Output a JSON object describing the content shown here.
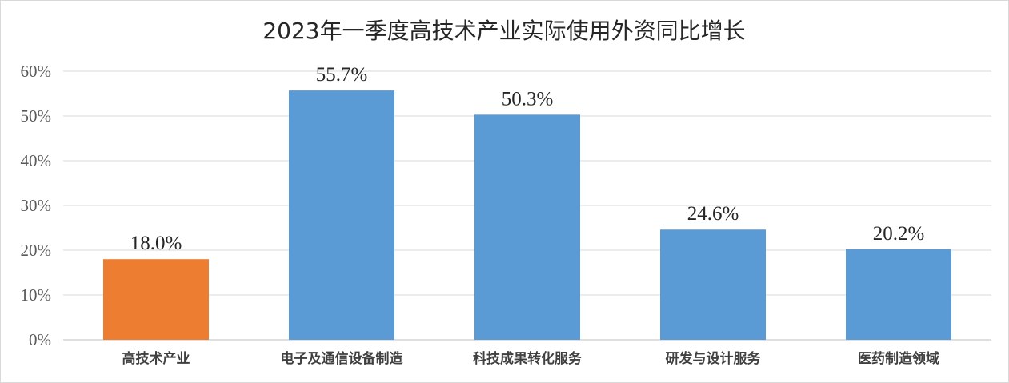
{
  "chart_data": {
    "type": "bar",
    "title": "2023年一季度高技术产业实际使用外资同比增长",
    "categories": [
      "高技术产业",
      "电子及通信设备制造",
      "科技成果转化服务",
      "研发与设计服务",
      "医药制造领域"
    ],
    "values": [
      18.0,
      55.7,
      50.3,
      24.6,
      20.2
    ],
    "data_labels": [
      "18.0%",
      "55.7%",
      "50.3%",
      "24.6%",
      "20.2%"
    ],
    "bar_colors": [
      "#ed7d31",
      "#5b9bd5",
      "#5b9bd5",
      "#5b9bd5",
      "#5b9bd5"
    ],
    "ylim": [
      0,
      60
    ],
    "yticks": [
      0,
      10,
      20,
      30,
      40,
      50,
      60
    ],
    "ytick_labels": [
      "0%",
      "10%",
      "20%",
      "30%",
      "40%",
      "50%",
      "60%"
    ],
    "xlabel": "",
    "ylabel": "",
    "grid": true,
    "legend": "none"
  }
}
